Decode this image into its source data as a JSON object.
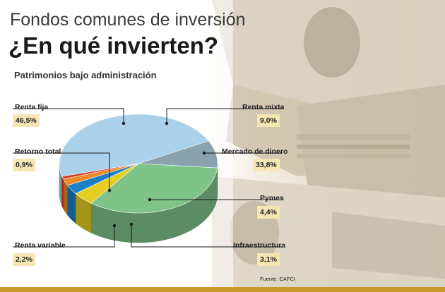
{
  "header": {
    "title": "Fondos comunes de inversión",
    "headline": "¿En qué invierten?",
    "subtitle": "Patrimonios bajo administración",
    "source": "Fuente: CAFCI"
  },
  "colors": {
    "renta_fija": "#a9d2ea",
    "renta_mixta": "#8aa2ad",
    "mercado_de_dinero": "#7fc389",
    "pymes": "#e6cd22",
    "infraestructura": "#1b80c6",
    "renta_variable": "#ee8a25",
    "retorno_total": "#d83c2a",
    "label_box": "#f6e6b4",
    "accent_bar": "#c89a2c"
  },
  "chart_data": {
    "type": "pie",
    "title": "Patrimonios bajo administración",
    "style": "3d",
    "unit": "%",
    "slices": [
      {
        "name": "Renta fija",
        "value": 46.5,
        "label": "46,5%"
      },
      {
        "name": "Renta mixta",
        "value": 9.0,
        "label": "9,0%"
      },
      {
        "name": "Mercado de dinero",
        "value": 33.8,
        "label": "33,8%"
      },
      {
        "name": "Pymes",
        "value": 4.4,
        "label": "4,4%"
      },
      {
        "name": "Infraestructura",
        "value": 3.1,
        "label": "3,1%"
      },
      {
        "name": "Renta variable",
        "value": 2.2,
        "label": "2,2%"
      },
      {
        "name": "Retorno total",
        "value": 0.9,
        "label": "0,9%"
      }
    ]
  }
}
